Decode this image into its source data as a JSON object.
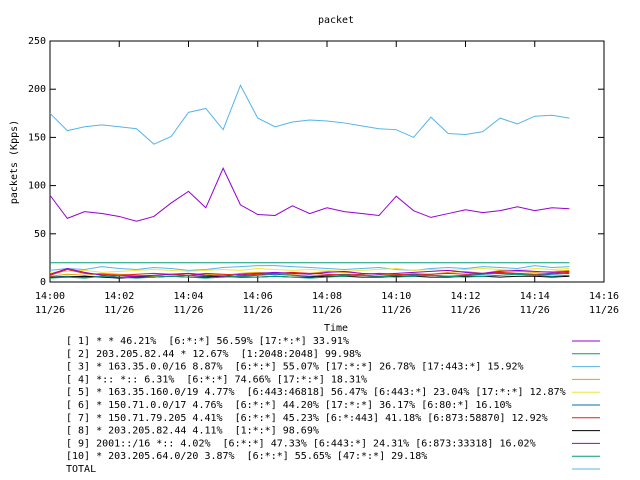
{
  "chart_data": {
    "type": "line",
    "title": "packet",
    "y_label": "packets (Kpps)",
    "x_label": "Time",
    "x": [
      "14:00:00",
      "14:00:30",
      "14:01:00",
      "14:01:30",
      "14:02:00",
      "14:02:30",
      "14:03:00",
      "14:03:30",
      "14:04:00",
      "14:04:30",
      "14:05:00",
      "14:05:30",
      "14:06:00",
      "14:06:30",
      "14:07:00",
      "14:07:30",
      "14:08:00",
      "14:08:30",
      "14:09:00",
      "14:09:30",
      "14:10:00",
      "14:10:30",
      "14:11:00",
      "14:11:30",
      "14:12:00",
      "14:12:30",
      "14:13:00",
      "14:13:30",
      "14:14:00",
      "14:14:30",
      "14:15:00"
    ],
    "xlim": [
      "14:00",
      "14:16"
    ],
    "xticks": [
      "14:00",
      "14:02",
      "14:04",
      "14:06",
      "14:08",
      "14:10",
      "14:12",
      "14:14",
      "14:16"
    ],
    "xtick_dates": [
      "11/26",
      "11/26",
      "11/26",
      "11/26",
      "11/26",
      "11/26",
      "11/26",
      "11/26",
      "11/26"
    ],
    "ylim": [
      0,
      250
    ],
    "yticks": [
      0,
      50,
      100,
      150,
      200,
      250
    ],
    "series": [
      {
        "name": "[ 1] * * 46.21%  [6:*:*] 56.59% [17:*:*] 33.91%",
        "color": "#9400d3",
        "values": [
          90,
          66,
          73,
          71,
          68,
          63,
          68,
          82,
          94,
          77,
          118,
          80,
          70,
          69,
          79,
          71,
          77,
          73,
          71,
          69,
          89,
          74,
          67,
          71,
          75,
          72,
          74,
          78,
          74,
          77,
          76
        ]
      },
      {
        "name": "[ 2] 203.205.82.44 * 12.67%  [1:2048:2048] 99.98%",
        "color": "#009e73",
        "values": [
          20,
          20,
          20,
          20,
          20,
          20,
          20,
          20,
          20,
          20,
          20,
          20,
          20,
          20,
          20,
          20,
          20,
          20,
          20,
          20,
          20,
          20,
          20,
          20,
          20,
          20,
          20,
          20,
          20,
          20,
          20
        ]
      },
      {
        "name": "[ 3] * 163.35.0.0/16 8.87%  [6:*:*] 55.07% [17:*:*] 26.78% [17:443:*] 15.92%",
        "color": "#56b4e9",
        "values": [
          12,
          14,
          13,
          16,
          14,
          13,
          15,
          14,
          12,
          13,
          15,
          16,
          17,
          17,
          16,
          15,
          14,
          13,
          14,
          15,
          13,
          12,
          14,
          15,
          14,
          16,
          15,
          14,
          17,
          15,
          16
        ]
      },
      {
        "name": "[ 4] *:: *:: 6.31%  [6:*:*] 74.66% [17:*:*] 18.31%",
        "color": "#e69f00",
        "values": [
          6,
          8,
          7,
          9,
          8,
          7,
          6,
          8,
          9,
          8,
          7,
          9,
          10,
          9,
          8,
          9,
          11,
          10,
          9,
          8,
          7,
          9,
          8,
          10,
          11,
          9,
          12,
          11,
          10,
          11,
          12
        ]
      },
      {
        "name": "[ 5] * 163.35.160.0/19 4.77%  [6:443:46818] 56.47% [6:443:*] 23.04% [17:*:*] 12.87%",
        "color": "#f0e442",
        "values": [
          10,
          11,
          12,
          10,
          11,
          12,
          13,
          12,
          11,
          12,
          13,
          12,
          14,
          13,
          12,
          13,
          12,
          11,
          12,
          13,
          14,
          12,
          13,
          12,
          13,
          14,
          13,
          12,
          14,
          13,
          14
        ]
      },
      {
        "name": "[ 6] * 150.71.0.0/17 4.76%  [6:*:*] 44.20% [17:*:*] 36.17% [6:80:*] 16.10%",
        "color": "#0072b2",
        "values": [
          5,
          6,
          5,
          6,
          7,
          6,
          5,
          6,
          7,
          6,
          5,
          6,
          7,
          8,
          7,
          6,
          7,
          8,
          7,
          6,
          7,
          8,
          7,
          6,
          7,
          8,
          9,
          8,
          7,
          8,
          9
        ]
      },
      {
        "name": "[ 7] * 150.71.79.205 4.41%  [6:*:*] 45.23% [6:*:443] 41.18% [6:873:58870] 12.92%",
        "color": "#e51e10",
        "values": [
          7,
          13,
          9,
          8,
          7,
          8,
          9,
          8,
          7,
          9,
          8,
          7,
          8,
          9,
          10,
          9,
          8,
          7,
          8,
          9,
          8,
          7,
          8,
          9,
          8,
          9,
          10,
          9,
          8,
          9,
          10
        ]
      },
      {
        "name": "[ 8] * 203.205.82.44 4.11%  [1:*:*] 98.69%",
        "color": "#000000",
        "values": [
          5,
          5,
          6,
          5,
          4,
          5,
          5,
          6,
          5,
          5,
          6,
          5,
          5,
          6,
          5,
          5,
          6,
          6,
          5,
          5,
          6,
          6,
          5,
          5,
          6,
          6,
          5,
          6,
          6,
          5,
          6
        ]
      },
      {
        "name": "[ 9] 2001::/16 *:: 4.02%  [6:*:*] 47.33% [6:443:*] 24.31% [6:873:33318] 16.02%",
        "color": "#9400d3",
        "values": [
          8,
          14,
          10,
          7,
          5,
          6,
          7,
          8,
          9,
          7,
          6,
          8,
          9,
          10,
          9,
          8,
          10,
          11,
          9,
          8,
          9,
          10,
          11,
          12,
          10,
          9,
          11,
          12,
          11,
          10,
          11
        ]
      },
      {
        "name": "[10] * 203.205.64.0/20 3.87%  [6:*:*] 55.65% [47:*:*] 29.18%",
        "color": "#009e73",
        "values": [
          4,
          5,
          4,
          6,
          5,
          4,
          5,
          6,
          5,
          4,
          5,
          6,
          5,
          6,
          5,
          4,
          5,
          6,
          7,
          6,
          5,
          6,
          7,
          6,
          5,
          6,
          7,
          8,
          7,
          6,
          7
        ]
      },
      {
        "name": "TOTAL",
        "color": "#56b4e9",
        "values": [
          175,
          157,
          161,
          163,
          161,
          159,
          143,
          151,
          176,
          180,
          158,
          204,
          170,
          161,
          166,
          168,
          167,
          165,
          162,
          159,
          158,
          150,
          171,
          154,
          153,
          156,
          170,
          164,
          172,
          173,
          170
        ]
      }
    ]
  }
}
